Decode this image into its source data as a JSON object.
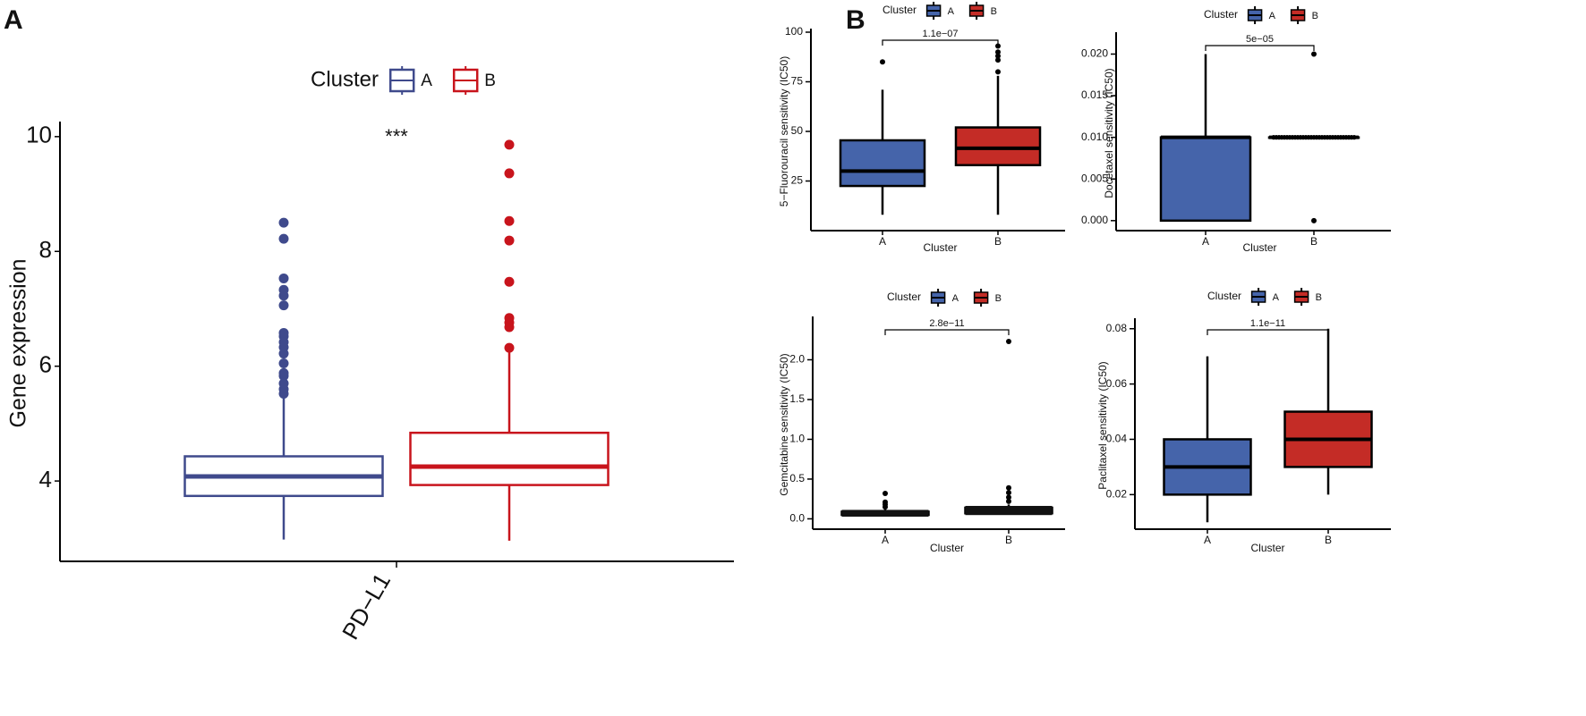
{
  "panels": [
    {
      "letter": "A"
    },
    {
      "letter": "B"
    }
  ],
  "colors": {
    "cluster_a": "#3F4A8C",
    "cluster_b": "#C8141C",
    "fill_a": "#4564AA",
    "fill_b": "#C42C26",
    "axis": "#000000"
  },
  "chart_data": [
    {
      "type": "box",
      "panel": "A",
      "legend_title": "Cluster",
      "legend_entries": [
        "A",
        "B"
      ],
      "xlabel": "",
      "ylabel": "Gene expression",
      "categories": [
        "PD−L1"
      ],
      "yticks": [
        4,
        6,
        8,
        10
      ],
      "ylim": [
        2.6,
        10.2
      ],
      "annotation": "***",
      "series": [
        {
          "name": "A",
          "whisker_low": 2.98,
          "q1": 3.74,
          "median": 4.08,
          "q3": 4.43,
          "whisker_high": 5.47,
          "outliers": [
            5.52,
            5.6,
            5.7,
            5.83,
            5.88,
            6.05,
            6.22,
            6.33,
            6.42,
            6.52,
            6.58,
            7.06,
            7.23,
            7.33,
            7.53,
            8.22,
            8.5
          ]
        },
        {
          "name": "B",
          "whisker_low": 2.96,
          "q1": 3.93,
          "median": 4.25,
          "q3": 4.84,
          "whisker_high": 6.28,
          "outliers": [
            6.32,
            6.68,
            6.76,
            6.84,
            7.47,
            8.19,
            8.53,
            9.36,
            9.86
          ]
        }
      ]
    },
    {
      "type": "box",
      "panel": "B",
      "legend_title": "Cluster",
      "legend_entries": [
        "A",
        "B"
      ],
      "xlabel": "Cluster",
      "ylabel": "5−Fluorouracil sensitivity (IC50)",
      "categories": [
        "A",
        "B"
      ],
      "yticks": [
        25,
        50,
        75,
        100
      ],
      "ytick_labels": [
        "25",
        "50",
        "75",
        "100"
      ],
      "ylim": [
        0,
        100
      ],
      "pvalue": "1.1e−07",
      "series": [
        {
          "name": "A",
          "whisker_low": 8,
          "q1": 22.5,
          "median": 30,
          "q3": 45.5,
          "whisker_high": 71,
          "outliers": [
            85
          ]
        },
        {
          "name": "B",
          "whisker_low": 8,
          "q1": 33,
          "median": 41.5,
          "q3": 52,
          "whisker_high": 78,
          "outliers": [
            80,
            86,
            88,
            90,
            93
          ]
        }
      ]
    },
    {
      "type": "box",
      "panel": "B",
      "legend_title": "Cluster",
      "legend_entries": [
        "A",
        "B"
      ],
      "xlabel": "Cluster",
      "ylabel": "Docetaxel sensitivity (IC50)",
      "categories": [
        "A",
        "B"
      ],
      "yticks": [
        0,
        0.005,
        0.01,
        0.015,
        0.02
      ],
      "ytick_labels": [
        "0.000",
        "0.005",
        "0.010",
        "0.015",
        "0.020"
      ],
      "ylim": [
        -0.0012,
        0.0222
      ],
      "pvalue": "5e−05",
      "series": [
        {
          "name": "A",
          "whisker_low": 0,
          "q1": 0,
          "median": 0.01,
          "q3": 0.01,
          "whisker_high": 0.02,
          "outliers": []
        },
        {
          "name": "B",
          "whisker_low": 0.01,
          "q1": 0.01,
          "median": 0.01,
          "q3": 0.01,
          "whisker_high": 0.01,
          "outliers": [
            0,
            0.02
          ]
        }
      ]
    },
    {
      "type": "box",
      "panel": "B",
      "legend_title": "Cluster",
      "legend_entries": [
        "A",
        "B"
      ],
      "xlabel": "Cluster",
      "ylabel": "Gemcitabine sensitivity (IC50)",
      "categories": [
        "A",
        "B"
      ],
      "yticks": [
        0,
        0.5,
        1,
        1.5,
        2
      ],
      "ytick_labels": [
        "0.0",
        "0.5",
        "1.0",
        "1.5",
        "2.0"
      ],
      "ylim": [
        -0.13,
        2.5
      ],
      "pvalue": "2.8e−11",
      "series": [
        {
          "name": "A",
          "whisker_low": 0.04,
          "q1": 0.05,
          "median": 0.07,
          "q3": 0.09,
          "whisker_high": 0.12,
          "outliers": [
            0.15,
            0.18,
            0.21,
            0.32
          ]
        },
        {
          "name": "B",
          "whisker_low": 0.05,
          "q1": 0.07,
          "median": 0.1,
          "q3": 0.14,
          "whisker_high": 0.18,
          "outliers": [
            0.22,
            0.27,
            0.33,
            0.39,
            2.23
          ]
        }
      ]
    },
    {
      "type": "box",
      "panel": "B",
      "legend_title": "Cluster",
      "legend_entries": [
        "A",
        "B"
      ],
      "xlabel": "Cluster",
      "ylabel": "Paclitaxel sensitivity (IC50)",
      "categories": [
        "A",
        "B"
      ],
      "yticks": [
        0.02,
        0.04,
        0.06,
        0.08
      ],
      "ytick_labels": [
        "0.02",
        "0.04",
        "0.06",
        "0.08"
      ],
      "ylim": [
        0.0075,
        0.0825
      ],
      "pvalue": "1.1e−11",
      "series": [
        {
          "name": "A",
          "whisker_low": 0.01,
          "q1": 0.02,
          "median": 0.03,
          "q3": 0.04,
          "whisker_high": 0.07,
          "outliers": []
        },
        {
          "name": "B",
          "whisker_low": 0.02,
          "q1": 0.03,
          "median": 0.04,
          "q3": 0.05,
          "whisker_high": 0.08,
          "outliers": []
        }
      ]
    }
  ]
}
